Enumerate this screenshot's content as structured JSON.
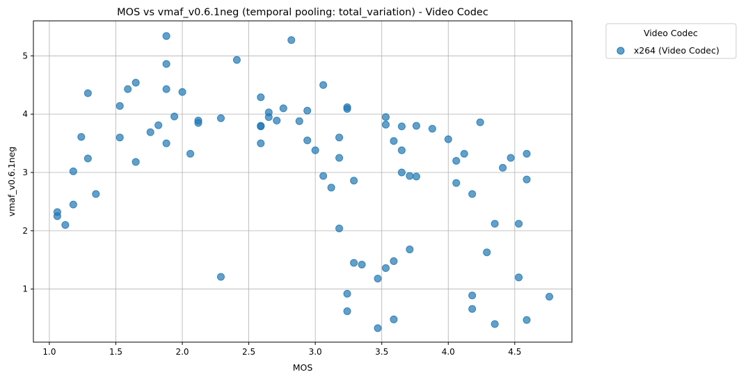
{
  "chart_data": {
    "type": "scatter",
    "title": "MOS vs vmaf_v0.6.1neg (temporal pooling: total_variation) - Video Codec",
    "xlabel": "MOS",
    "ylabel": "vmaf_v0.6.1neg",
    "xlim": [
      0.88,
      4.93
    ],
    "ylim": [
      0.09,
      5.6
    ],
    "xticks": [
      "1.0",
      "1.5",
      "2.0",
      "2.5",
      "3.0",
      "3.5",
      "4.0",
      "4.5"
    ],
    "xtick_values": [
      1.0,
      1.5,
      2.0,
      2.5,
      3.0,
      3.5,
      4.0,
      4.5
    ],
    "yticks": [
      "1",
      "2",
      "3",
      "4",
      "5"
    ],
    "ytick_values": [
      1,
      2,
      3,
      4,
      5
    ],
    "grid": true,
    "legend": {
      "title": "Video Codec",
      "placement": "outside-top-right"
    },
    "series": [
      {
        "name": "x264 (Video Codec)",
        "color": "#1f77b4",
        "x": [
          1.06,
          1.06,
          1.12,
          1.18,
          1.18,
          1.24,
          1.29,
          1.29,
          1.35,
          1.53,
          1.53,
          1.59,
          1.65,
          1.65,
          1.76,
          1.82,
          1.88,
          1.88,
          1.88,
          1.88,
          1.94,
          2.0,
          2.06,
          2.12,
          2.12,
          2.29,
          2.29,
          2.41,
          2.59,
          2.59,
          2.59,
          2.59,
          2.65,
          2.65,
          2.71,
          2.76,
          2.82,
          2.88,
          2.94,
          2.94,
          3.0,
          3.06,
          3.06,
          3.12,
          3.18,
          3.18,
          3.18,
          3.24,
          3.24,
          3.24,
          3.24,
          3.29,
          3.29,
          3.35,
          3.47,
          3.47,
          3.53,
          3.53,
          3.53,
          3.59,
          3.59,
          3.59,
          3.65,
          3.65,
          3.65,
          3.71,
          3.71,
          3.76,
          3.76,
          3.88,
          4.0,
          4.06,
          4.06,
          4.12,
          4.18,
          4.18,
          4.18,
          4.24,
          4.29,
          4.35,
          4.35,
          4.41,
          4.47,
          4.53,
          4.53,
          4.59,
          4.59,
          4.59,
          4.76
        ],
        "y": [
          2.32,
          2.25,
          2.1,
          3.02,
          2.45,
          3.61,
          4.36,
          3.24,
          2.63,
          4.14,
          3.6,
          4.43,
          4.54,
          3.18,
          3.69,
          3.81,
          5.34,
          4.86,
          4.43,
          3.5,
          3.96,
          4.38,
          3.32,
          3.89,
          3.85,
          3.93,
          1.21,
          4.93,
          4.29,
          3.8,
          3.79,
          3.5,
          4.03,
          3.95,
          3.89,
          4.1,
          5.27,
          3.88,
          4.06,
          3.55,
          3.38,
          4.5,
          2.94,
          2.74,
          3.6,
          3.25,
          2.04,
          4.12,
          4.09,
          0.92,
          0.62,
          2.86,
          1.45,
          1.42,
          1.18,
          0.33,
          3.95,
          3.82,
          1.36,
          3.54,
          1.48,
          0.48,
          3.79,
          3.38,
          3.0,
          2.94,
          1.68,
          3.8,
          2.93,
          3.75,
          3.57,
          3.2,
          2.82,
          3.32,
          2.63,
          0.89,
          0.66,
          3.86,
          1.63,
          2.12,
          0.4,
          3.08,
          3.25,
          2.12,
          1.2,
          3.32,
          2.88,
          0.47,
          0.87
        ]
      }
    ]
  }
}
